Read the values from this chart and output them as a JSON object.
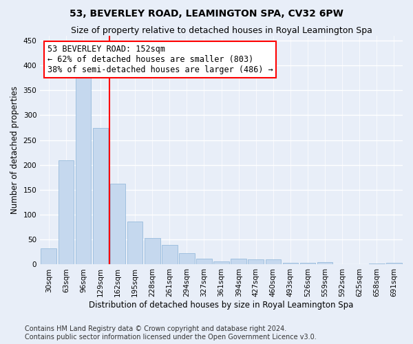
{
  "title": "53, BEVERLEY ROAD, LEAMINGTON SPA, CV32 6PW",
  "subtitle": "Size of property relative to detached houses in Royal Leamington Spa",
  "xlabel": "Distribution of detached houses by size in Royal Leamington Spa",
  "ylabel": "Number of detached properties",
  "bar_color": "#c5d8ee",
  "bar_edge_color": "#8ab4d8",
  "background_color": "#e8eef8",
  "grid_color": "#ffffff",
  "categories": [
    "30sqm",
    "63sqm",
    "96sqm",
    "129sqm",
    "162sqm",
    "195sqm",
    "228sqm",
    "261sqm",
    "294sqm",
    "327sqm",
    "361sqm",
    "394sqm",
    "427sqm",
    "460sqm",
    "493sqm",
    "526sqm",
    "559sqm",
    "592sqm",
    "625sqm",
    "658sqm",
    "691sqm"
  ],
  "values": [
    32,
    209,
    376,
    275,
    162,
    87,
    53,
    39,
    23,
    12,
    6,
    12,
    11,
    10,
    4,
    4,
    5,
    1,
    0,
    2,
    4
  ],
  "vline_color": "red",
  "vline_index": 4,
  "annotation_line1": "53 BEVERLEY ROAD: 152sqm",
  "annotation_line2": "← 62% of detached houses are smaller (803)",
  "annotation_line3": "38% of semi-detached houses are larger (486) →",
  "ylim_max": 460,
  "yticks": [
    0,
    50,
    100,
    150,
    200,
    250,
    300,
    350,
    400,
    450
  ],
  "footnote": "Contains HM Land Registry data © Crown copyright and database right 2024.\nContains public sector information licensed under the Open Government Licence v3.0.",
  "title_fontsize": 10,
  "subtitle_fontsize": 9,
  "axis_label_fontsize": 8.5,
  "tick_fontsize": 7.5,
  "annotation_fontsize": 8.5,
  "footnote_fontsize": 7
}
